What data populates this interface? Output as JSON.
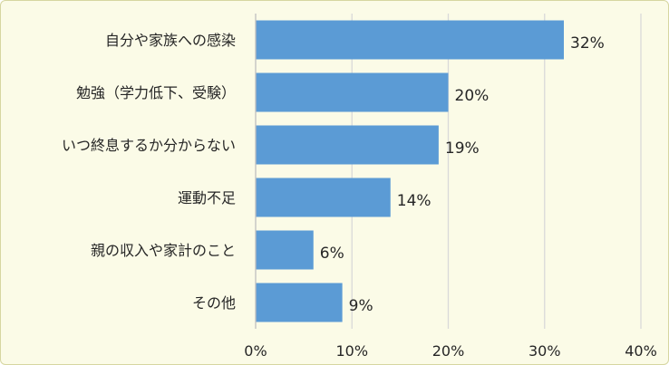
{
  "colors": {
    "background": "#fbfbe7",
    "bar": "#5b9bd5",
    "gridline": "#d9d9d9",
    "axis_line": "#bfbfbf",
    "text": "#262626"
  },
  "chart_data": {
    "type": "bar",
    "orientation": "horizontal",
    "categories": [
      "自分や家族への感染",
      "勉強（学力低下、受験）",
      "いつ終息するか分からない",
      "運動不足",
      "親の収入や家計のこと",
      "その他"
    ],
    "values": [
      32,
      20,
      19,
      14,
      6,
      9
    ],
    "value_labels": [
      "32%",
      "20%",
      "19%",
      "14%",
      "6%",
      "9%"
    ],
    "x_ticks": [
      0,
      10,
      20,
      30,
      40
    ],
    "x_tick_labels": [
      "0%",
      "10%",
      "20%",
      "30%",
      "40%"
    ],
    "xlim": [
      0,
      40
    ],
    "grid": "vertical",
    "legend": "none"
  }
}
